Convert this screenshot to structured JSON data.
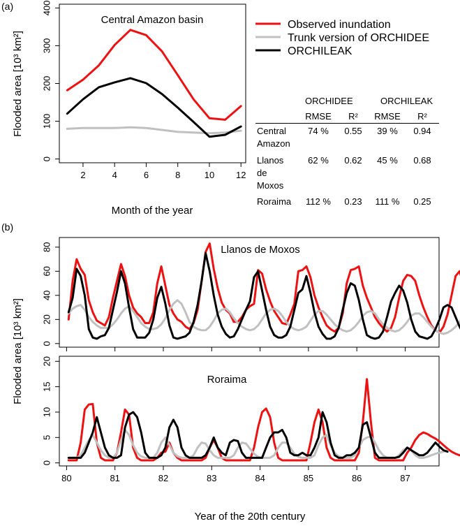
{
  "figure": {
    "panel_a_letter": "(a)",
    "panel_b_letter": "(b)"
  },
  "legend": {
    "entries": [
      {
        "label": "Observed inundation",
        "color": "#ee1111"
      },
      {
        "label": "Trunk version of ORCHIDEE",
        "color": "#c0c0c0"
      },
      {
        "label": "ORCHILEAK",
        "color": "#000000"
      }
    ]
  },
  "stats_table": {
    "group_headers": [
      "ORCHIDEE",
      "ORCHILEAK"
    ],
    "metric_headers": [
      "RMSE",
      "R²",
      "RMSE",
      "R²"
    ],
    "rows": [
      {
        "site": [
          "Central",
          "Amazon"
        ],
        "values": [
          "74 %",
          "0.55",
          "39 %",
          "0.94"
        ]
      },
      {
        "site": [
          "Llanos",
          "de",
          "Moxos"
        ],
        "values": [
          "62 %",
          "0.62",
          "45 %",
          "0.68"
        ]
      },
      {
        "site": [
          "Roraima"
        ],
        "values": [
          "112 %",
          "0.23",
          "111 %",
          "0.25"
        ]
      }
    ]
  },
  "colors": {
    "observed": "#ee1111",
    "trunk": "#c0c0c0",
    "orchileak": "#000000"
  },
  "chart_data": [
    {
      "type": "line",
      "panel": "a",
      "title": "Central Amazon basin",
      "xlabel": "Month of the year",
      "ylabel": "Flooded area [10³ km²]",
      "xlim": [
        0.5,
        12.3
      ],
      "ylim": [
        -10,
        410
      ],
      "xticks": [
        2,
        4,
        6,
        8,
        10,
        12
      ],
      "yticks": [
        0,
        100,
        200,
        300,
        400
      ],
      "x": [
        1,
        2,
        3,
        4,
        5,
        6,
        7,
        8,
        9,
        10,
        11,
        12
      ],
      "series": [
        {
          "name": "Observed inundation",
          "color": "#ee1111",
          "values": [
            182,
            210,
            248,
            302,
            342,
            328,
            285,
            222,
            158,
            108,
            104,
            140
          ]
        },
        {
          "name": "Trunk version of ORCHIDEE",
          "color": "#c0c0c0",
          "values": [
            80,
            82,
            82,
            82,
            84,
            82,
            77,
            72,
            70,
            68,
            70,
            75
          ]
        },
        {
          "name": "ORCHILEAK",
          "color": "#000000",
          "values": [
            120,
            158,
            190,
            203,
            214,
            201,
            172,
            136,
            98,
            59,
            64,
            86
          ]
        }
      ]
    },
    {
      "type": "line",
      "panel": "b-top",
      "title": "Llanos de Moxos",
      "xlabel": "",
      "ylabel": "Flooded area [10³ km²]",
      "xlim": [
        79.85,
        87.7
      ],
      "ylim": [
        -3,
        88
      ],
      "yticks": [
        0,
        20,
        40,
        60,
        80
      ],
      "x_start": 80.0417,
      "x_step": 0.08333,
      "series": [
        {
          "name": "Observed inundation",
          "color": "#ee1111",
          "values": [
            20,
            52,
            70,
            62,
            57,
            36,
            26,
            19,
            17,
            15,
            22,
            38,
            52,
            66,
            56,
            40,
            30,
            25,
            22,
            17,
            17,
            26,
            50,
            64,
            48,
            32,
            25,
            20,
            18,
            14,
            12,
            17,
            28,
            52,
            76,
            83,
            62,
            46,
            34,
            28,
            25,
            18,
            18,
            22,
            28,
            31,
            33,
            61,
            58,
            45,
            35,
            27,
            22,
            17,
            16,
            24,
            33,
            60,
            61,
            64,
            55,
            40,
            30,
            22,
            15,
            12,
            10,
            13,
            25,
            50,
            61,
            62,
            64,
            48,
            38,
            30,
            22,
            17,
            13,
            10,
            13,
            22,
            38,
            52,
            57,
            56,
            52,
            40,
            30,
            22,
            15,
            11,
            9,
            14,
            24,
            40,
            56,
            60,
            49,
            36,
            27,
            20,
            15,
            10,
            8,
            14,
            28,
            48,
            60,
            62,
            43,
            30,
            25,
            20,
            15,
            12,
            10,
            16,
            25,
            38,
            35,
            30,
            28,
            22,
            18,
            16,
            22
          ]
        },
        {
          "name": "Trunk version of ORCHIDEE",
          "color": "#c0c0c0",
          "values": [
            25,
            29,
            31,
            32,
            28,
            22,
            18,
            15,
            13,
            13,
            13,
            16,
            20,
            25,
            29,
            31,
            27,
            22,
            17,
            14,
            12,
            12,
            13,
            16,
            21,
            28,
            33,
            36,
            33,
            26,
            18,
            14,
            12,
            11,
            11,
            14,
            19,
            25,
            28,
            29,
            26,
            21,
            17,
            14,
            12,
            11,
            12,
            15,
            20,
            25,
            28,
            29,
            27,
            23,
            18,
            14,
            12,
            11,
            12,
            14,
            19,
            24,
            27,
            27,
            24,
            20,
            16,
            13,
            11,
            10,
            11,
            14,
            18,
            23,
            26,
            27,
            25,
            20,
            16,
            13,
            11,
            10,
            11,
            14,
            18,
            23,
            25,
            25,
            22,
            18,
            14,
            11,
            9,
            8,
            9,
            11,
            14,
            18,
            21,
            23,
            20,
            16,
            13,
            10,
            8,
            7,
            8,
            10,
            13,
            17,
            20,
            21,
            19,
            16,
            12,
            9,
            7,
            6,
            7,
            10,
            14,
            18,
            22,
            24,
            20,
            16,
            14
          ]
        },
        {
          "name": "ORCHILEAK",
          "color": "#000000",
          "values": [
            26,
            38,
            62,
            56,
            40,
            12,
            5,
            4,
            6,
            7,
            13,
            28,
            43,
            60,
            50,
            30,
            12,
            5,
            5,
            5,
            9,
            20,
            38,
            47,
            33,
            15,
            5,
            4,
            5,
            6,
            9,
            18,
            32,
            52,
            75,
            60,
            40,
            24,
            14,
            8,
            5,
            6,
            12,
            20,
            28,
            35,
            55,
            60,
            44,
            28,
            14,
            7,
            5,
            5,
            7,
            14,
            28,
            42,
            45,
            56,
            42,
            26,
            14,
            8,
            4,
            4,
            6,
            13,
            28,
            42,
            50,
            48,
            36,
            20,
            7,
            5,
            4,
            5,
            10,
            22,
            35,
            42,
            48,
            44,
            34,
            20,
            10,
            6,
            5,
            4,
            6,
            12,
            20,
            30,
            32,
            30,
            22,
            14,
            8,
            5,
            4,
            5,
            6,
            10,
            14,
            20,
            30,
            32,
            28,
            20,
            15,
            12,
            10,
            8,
            6,
            6,
            8,
            12,
            18,
            26,
            30,
            28,
            22,
            18,
            16,
            14,
            12
          ]
        }
      ]
    },
    {
      "type": "line",
      "panel": "b-bottom",
      "title": "Roraima",
      "xlabel": "Year of the 20th century",
      "ylabel": "",
      "xlim": [
        79.85,
        87.7
      ],
      "ylim": [
        -0.6,
        21
      ],
      "xticks": [
        80,
        81,
        82,
        83,
        84,
        85,
        86,
        87
      ],
      "yticks": [
        0,
        5,
        10,
        15,
        20
      ],
      "x_start": 80.0417,
      "x_step": 0.08333,
      "series": [
        {
          "name": "Observed inundation",
          "color": "#ee1111",
          "values": [
            0.5,
            0.5,
            0.5,
            4,
            10.5,
            11.5,
            11.6,
            4,
            1,
            0.5,
            0.5,
            0.5,
            2,
            6,
            10.5,
            9.5,
            3,
            1,
            0.5,
            0.5,
            0.5,
            0.5,
            1,
            2,
            2.2,
            4,
            2,
            1,
            0.5,
            0.5,
            0.5,
            0.5,
            0.5,
            0.5,
            1,
            3,
            4.5,
            3,
            1,
            0.5,
            0.5,
            0.5,
            0.5,
            0.5,
            0.5,
            0.5,
            3,
            7,
            10,
            10.7,
            9,
            4,
            1,
            0.5,
            0.5,
            0.5,
            0.5,
            0.5,
            0.5,
            0.5,
            4,
            8,
            10.5,
            8,
            3,
            1,
            0.5,
            0.5,
            0.5,
            0.5,
            0.5,
            0.5,
            2,
            8,
            16.5,
            8,
            1,
            0.5,
            0.5,
            0.5,
            0.5,
            0.5,
            0.5,
            0.5,
            2,
            3,
            4.5,
            5.5,
            6,
            5.7,
            5.2,
            4.8,
            4.2,
            3.5,
            2.8,
            2.2,
            1.8,
            1.5
          ]
        },
        {
          "name": "Trunk version of ORCHIDEE",
          "color": "#c0c0c0",
          "values": [
            1,
            1,
            1,
            1.5,
            3,
            4.5,
            5.5,
            4,
            2.5,
            1.5,
            1,
            1,
            2,
            4.5,
            6.5,
            5.5,
            3.5,
            2,
            1.3,
            1,
            1,
            1,
            2,
            4,
            5,
            3.5,
            2,
            1.3,
            1,
            1,
            1,
            1.5,
            3,
            4,
            3.8,
            2.5,
            1.5,
            1,
            1,
            1,
            1,
            1.5,
            3,
            4,
            3.8,
            2.8,
            1.8,
            1.2,
            1,
            1,
            1,
            1.5,
            3,
            4,
            4,
            3,
            1.8,
            1.2,
            1,
            1,
            1,
            1.5,
            3.5,
            5,
            5.5,
            3.5,
            2,
            1.3,
            1,
            1,
            1,
            1.5,
            3,
            4.5,
            5,
            5.2,
            4,
            2.5,
            1.5,
            1,
            1,
            1,
            1.5,
            2.5,
            3,
            2.5,
            1.5,
            1,
            1,
            1.2,
            1.5,
            1.8,
            2,
            2.2,
            2.4
          ]
        },
        {
          "name": "ORCHILEAK",
          "color": "#000000",
          "values": [
            1,
            1,
            1,
            1,
            2,
            4,
            6,
            9,
            6,
            3,
            1.5,
            1,
            1,
            1.5,
            7,
            9.5,
            10,
            9,
            6,
            2,
            1,
            1,
            1,
            1.5,
            3,
            7,
            8.5,
            7,
            3,
            1.5,
            1,
            1,
            1,
            1,
            1.5,
            3,
            5,
            3,
            2,
            1.5,
            4,
            4.5,
            4.3,
            2,
            1,
            1,
            1,
            1,
            1,
            3,
            5,
            6,
            6,
            6.5,
            5,
            2,
            1.5,
            1.5,
            2,
            1.5,
            1.5,
            3,
            5,
            10,
            8,
            4,
            1.5,
            1,
            1,
            1.5,
            1.5,
            2,
            3,
            7.5,
            8,
            5,
            2,
            1,
            1,
            1,
            1,
            1,
            1.2,
            2,
            3,
            2.5,
            2,
            1.5,
            1.5,
            2,
            3,
            4,
            3.2,
            2.5,
            2.2
          ]
        }
      ]
    }
  ]
}
